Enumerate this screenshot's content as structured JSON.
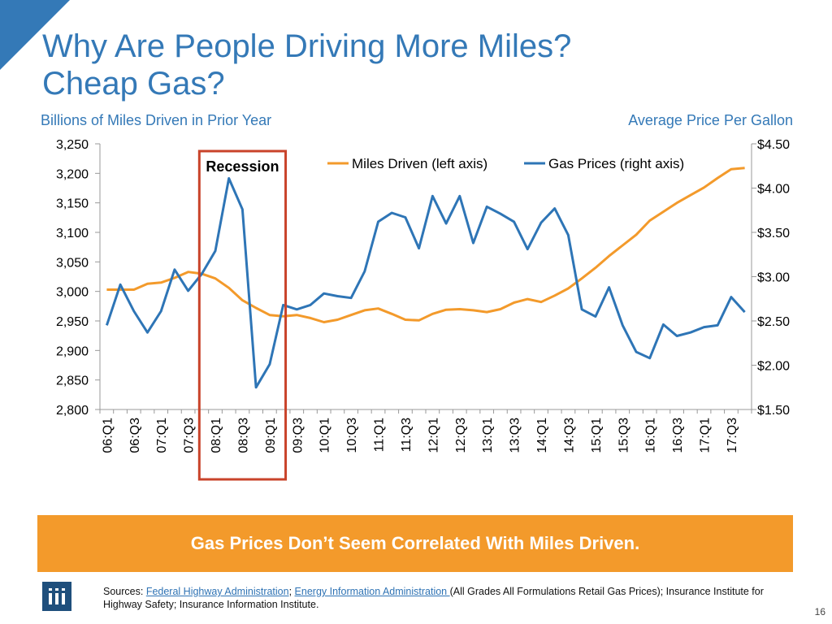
{
  "title": {
    "line1": "Why Are People Driving More Miles?",
    "line2": "Cheap Gas?"
  },
  "axis_captions": {
    "left": "Billions of Miles Driven in Prior Year",
    "right": "Average Price Per Gallon"
  },
  "colors": {
    "miles": "#f39a2b",
    "gas": "#2e75b6",
    "recession": "#c9432a",
    "title": "#3479b7",
    "banner": "#f39a2b"
  },
  "banner": {
    "text": "Gas Prices Don’t Seem Correlated With Miles Driven."
  },
  "sources": {
    "prefix": "Sources: ",
    "link1": "Federal Highway Administration",
    "sep": "; ",
    "link2": "Energy Information Administration ",
    "rest": "(All Grades All Formulations Retail Gas Prices); Insurance Institute for Highway Safety; Insurance Information Institute."
  },
  "page_number": "16",
  "chart_data": {
    "type": "line",
    "x": [
      "06:Q1",
      "06:Q2",
      "06:Q3",
      "06:Q4",
      "07:Q1",
      "07:Q2",
      "07:Q3",
      "07:Q4",
      "08:Q1",
      "08:Q2",
      "08:Q3",
      "08:Q4",
      "09:Q1",
      "09:Q2",
      "09:Q3",
      "09:Q4",
      "10:Q1",
      "10:Q2",
      "10:Q3",
      "10:Q4",
      "11:Q1",
      "11:Q2",
      "11:Q3",
      "11:Q4",
      "12:Q1",
      "12:Q2",
      "12:Q3",
      "12:Q4",
      "13:Q1",
      "13:Q2",
      "13:Q3",
      "13:Q4",
      "14:Q1",
      "14:Q2",
      "14:Q3",
      "14:Q4",
      "15:Q1",
      "15:Q2",
      "15:Q3",
      "15:Q4",
      "16:Q1",
      "16:Q2",
      "16:Q3",
      "16:Q4",
      "17:Q1",
      "17:Q2",
      "17:Q3",
      "17:Q4"
    ],
    "x_tick_labels": [
      "06:Q1",
      "06:Q3",
      "07:Q1",
      "07:Q3",
      "08:Q1",
      "08:Q3",
      "09:Q1",
      "09:Q3",
      "10:Q1",
      "10:Q3",
      "11:Q1",
      "11:Q3",
      "12:Q1",
      "12:Q3",
      "13:Q1",
      "13:Q3",
      "14:Q1",
      "14:Q3",
      "15:Q1",
      "15:Q3",
      "16:Q1",
      "16:Q3",
      "17:Q1",
      "17:Q3"
    ],
    "series": [
      {
        "name": "Miles Driven (left axis)",
        "axis": "left",
        "values": [
          3003,
          3003,
          3003,
          3013,
          3015,
          3023,
          3033,
          3030,
          3022,
          3006,
          2985,
          2972,
          2960,
          2958,
          2960,
          2955,
          2948,
          2952,
          2960,
          2968,
          2971,
          2962,
          2952,
          2951,
          2962,
          2969,
          2970,
          2968,
          2965,
          2970,
          2981,
          2987,
          2982,
          2993,
          3005,
          3022,
          3040,
          3060,
          3078,
          3096,
          3120,
          3135,
          3150,
          3163,
          3176,
          3192,
          3207,
          3209
        ]
      },
      {
        "name": "Gas Prices (right axis)",
        "axis": "right",
        "values": [
          2.45,
          2.91,
          2.61,
          2.37,
          2.61,
          3.08,
          2.84,
          3.03,
          3.29,
          4.11,
          3.76,
          1.75,
          2.01,
          2.68,
          2.63,
          2.68,
          2.81,
          2.78,
          2.76,
          3.06,
          3.62,
          3.72,
          3.67,
          3.32,
          3.91,
          3.6,
          3.91,
          3.38,
          3.79,
          3.71,
          3.62,
          3.31,
          3.61,
          3.77,
          3.47,
          2.63,
          2.55,
          2.88,
          2.45,
          2.15,
          2.08,
          2.46,
          2.33,
          2.37,
          2.43,
          2.45,
          2.77,
          2.6
        ]
      }
    ],
    "y_left": {
      "min": 2800,
      "max": 3250,
      "ticks": [
        "2,800",
        "2,850",
        "2,900",
        "2,950",
        "3,000",
        "3,050",
        "3,100",
        "3,150",
        "3,200",
        "3,250"
      ]
    },
    "y_right": {
      "min": 1.5,
      "max": 4.5,
      "ticks": [
        "$1.50",
        "$2.00",
        "$2.50",
        "$3.00",
        "$3.50",
        "$4.00",
        "$4.50"
      ]
    },
    "legend": {
      "position": "top-center",
      "items": [
        "Miles Driven (left axis)",
        "Gas Prices (right axis)"
      ]
    },
    "annotation": {
      "label": "Recession",
      "from": "07:Q4",
      "to": "09:Q2"
    }
  }
}
